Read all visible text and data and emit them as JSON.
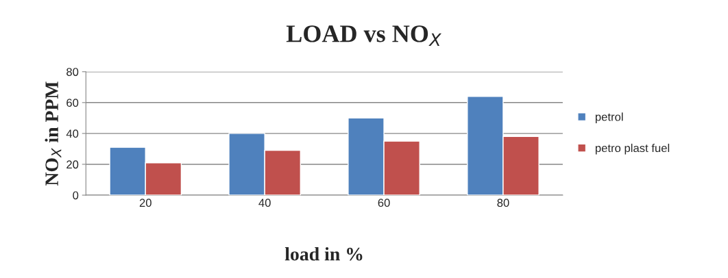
{
  "chart_data": {
    "type": "bar",
    "title": "LOAD vs NO$_{X}$",
    "xlabel": "load in %",
    "ylabel": "NO$_{X}$ in PPM",
    "categories": [
      "20",
      "40",
      "60",
      "80"
    ],
    "series": [
      {
        "name": "petrol",
        "color": "#4f81bd",
        "values": [
          31,
          40,
          50,
          64
        ]
      },
      {
        "name": "petro plast fuel",
        "color": "#c0504d",
        "values": [
          21,
          29,
          35,
          38
        ]
      }
    ],
    "ylim": [
      0,
      80
    ],
    "yticks": [
      0,
      20,
      40,
      60,
      80
    ],
    "grid": "y",
    "legend": "right"
  }
}
